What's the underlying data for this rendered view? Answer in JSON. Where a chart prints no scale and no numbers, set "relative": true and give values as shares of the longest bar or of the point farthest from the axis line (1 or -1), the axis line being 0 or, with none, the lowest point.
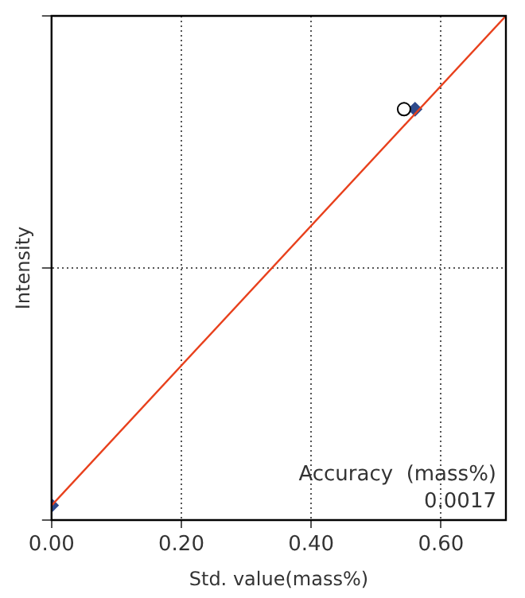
{
  "chart_data": {
    "type": "scatter",
    "xlabel": "Std. value(mass%)",
    "ylabel": "Intensity",
    "relative": true,
    "xlim": [
      0,
      0.7
    ],
    "xticks": [
      {
        "value": 0,
        "label": "0.00"
      },
      {
        "value": 0.2,
        "label": "0.20"
      },
      {
        "value": 0.4,
        "label": "0.40"
      },
      {
        "value": 0.6,
        "label": "0.60"
      }
    ],
    "grid": true,
    "legend": false,
    "series": [
      {
        "type": "line",
        "color": "#e8401c",
        "marker": "none",
        "line_style": "solid",
        "x": [
          0,
          0.7
        ],
        "values": [
          0.029,
          1
        ]
      },
      {
        "type": "scatter",
        "color": "#000000",
        "marker": "circle",
        "x": [
          0.543
        ],
        "values": [
          0.815
        ]
      },
      {
        "type": "scatter",
        "color": "#2e4a8c",
        "marker": "diamond",
        "x": [
          0.0,
          0.56
        ],
        "values": [
          0.029,
          0.815
        ]
      }
    ],
    "annotations": [
      "Accuracy  (mass%)",
      "0.0017"
    ]
  }
}
